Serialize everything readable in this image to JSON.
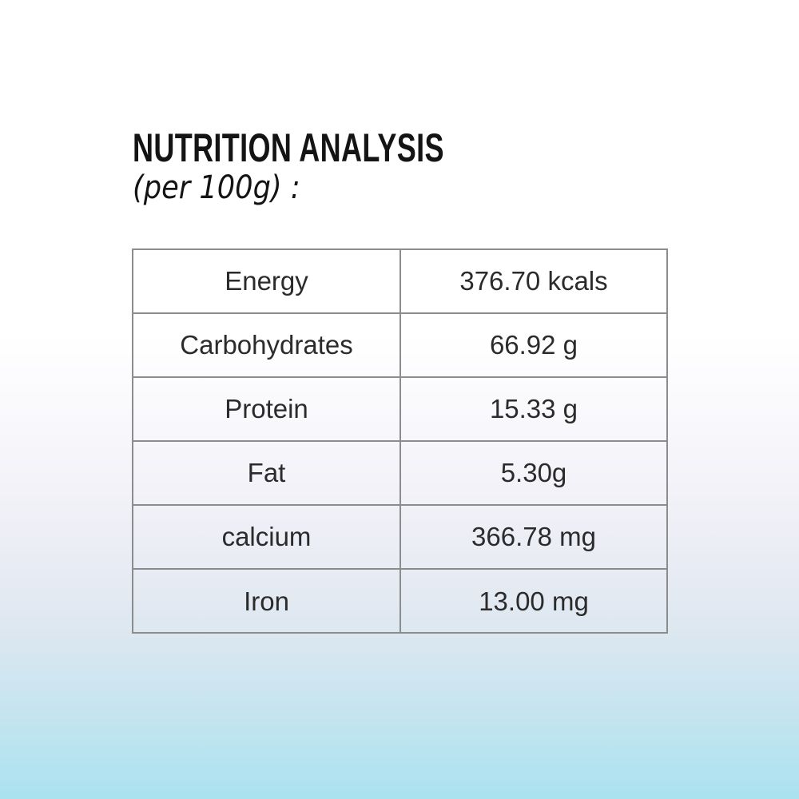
{
  "header": {
    "title": "NUTRITION ANALYSIS",
    "subtitle": "(per 100g) :"
  },
  "table": {
    "rows": [
      {
        "label": "Energy",
        "value": "376.70 kcals"
      },
      {
        "label": "Carbohydrates",
        "value": "66.92 g"
      },
      {
        "label": "Protein",
        "value": "15.33 g"
      },
      {
        "label": "Fat",
        "value": "5.30g"
      },
      {
        "label": "calcium",
        "value": "366.78 mg"
      },
      {
        "label": "Iron",
        "value": "13.00 mg"
      }
    ]
  },
  "colors": {
    "title_text": "#141414",
    "table_text": "#2b2b2b",
    "table_border": "#8c8c8c",
    "background_top": "#ffffff",
    "background_bottom": "#aae2f0"
  }
}
